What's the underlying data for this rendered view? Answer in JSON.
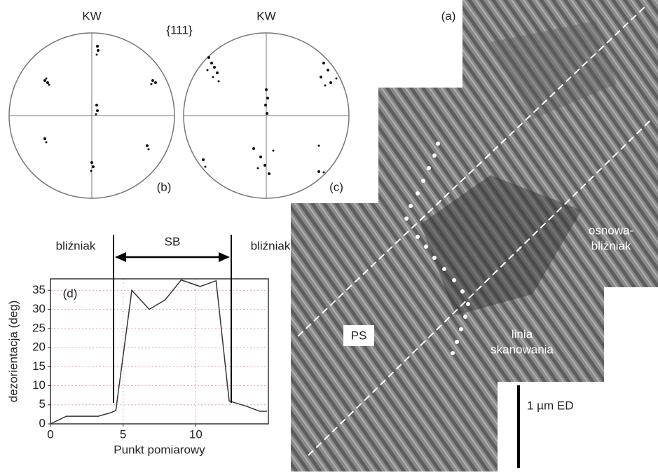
{
  "pole_figures": {
    "left_label": "KW",
    "right_label": "KW",
    "plane": "{111}",
    "left_panel": "(b)",
    "right_panel": "(c)"
  },
  "micrograph": {
    "panel": "(a)",
    "ps_label": "PS",
    "scan_line": [
      "linia",
      "skanowania"
    ],
    "matrix_twin": [
      "osnowa-",
      "bliźniak"
    ],
    "scale_bar": "1 µm ED"
  },
  "chart_data": {
    "type": "line",
    "panel": "(d)",
    "x_label": "Punkt pomiarowy",
    "y_label": "dezorientacja (deg)",
    "x": [
      0,
      1.1,
      3.3,
      4.2,
      4.5,
      5.6,
      6.8,
      7.9,
      9,
      10.3,
      11.4,
      12.3,
      13.5,
      14.4,
      14.9
    ],
    "values": [
      0,
      2,
      2,
      3,
      3.5,
      35,
      30,
      32.5,
      37.7,
      36,
      37.5,
      6,
      4.6,
      3.3,
      3.3
    ],
    "color": "#333333",
    "xlim": [
      0,
      15
    ],
    "ylim": [
      0,
      38
    ],
    "xticks": [
      0,
      5,
      10
    ],
    "yticks": [
      0,
      5,
      10,
      15,
      20,
      25,
      30,
      35
    ],
    "grid": true,
    "grid_color": "#e7a3a3",
    "annotations": {
      "left": "bliźniak",
      "middle": "SB",
      "right": "bliźniak"
    }
  }
}
